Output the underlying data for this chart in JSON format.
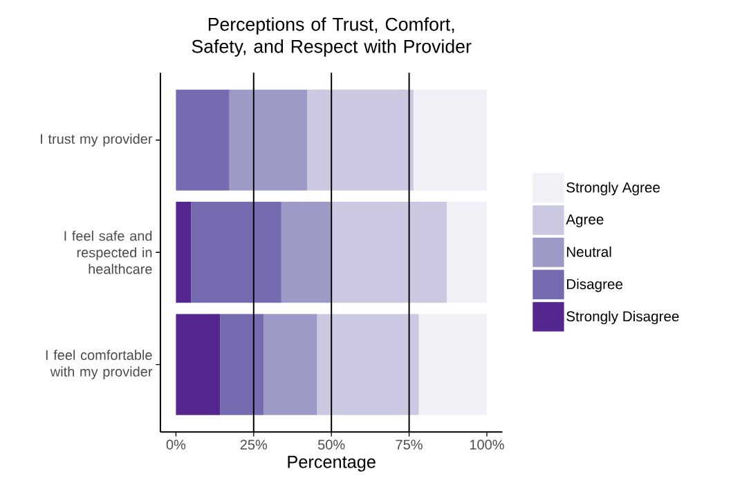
{
  "chart_data": {
    "type": "bar",
    "orientation": "horizontal",
    "stacked": true,
    "title": "Perceptions of Trust, Comfort, Safety, and Respect with Provider",
    "xlabel": "Percentage",
    "categories": [
      "I trust my provider",
      "I feel safe and respected in healthcare",
      "I feel comfortable with my provider"
    ],
    "series": [
      {
        "name": "Strongly Disagree",
        "color": "#54278f",
        "values": [
          0,
          4.9,
          14.2
        ]
      },
      {
        "name": "Disagree",
        "color": "#756bb1",
        "values": [
          17.2,
          29.0,
          14.0
        ]
      },
      {
        "name": "Neutral",
        "color": "#9e9ac8",
        "values": [
          25.0,
          15.9,
          17.2
        ]
      },
      {
        "name": "Agree",
        "color": "#cbc9e2",
        "values": [
          34.2,
          37.3,
          32.7
        ]
      },
      {
        "name": "Strongly Agree",
        "color": "#f2f0f7",
        "values": [
          23.6,
          12.9,
          21.9
        ]
      }
    ],
    "xlim": [
      -5,
      105
    ],
    "xticks": [
      {
        "value": 0,
        "label": "0%"
      },
      {
        "value": 25,
        "label": "25%"
      },
      {
        "value": 50,
        "label": "50%"
      },
      {
        "value": 75,
        "label": "75%"
      },
      {
        "value": 100,
        "label": "100%"
      }
    ],
    "ref_lines": [
      {
        "axis": "x",
        "value": 25,
        "color": "#000000"
      },
      {
        "axis": "x",
        "value": 50,
        "color": "#000000"
      },
      {
        "axis": "x",
        "value": 75,
        "color": "#000000"
      }
    ],
    "grid": false,
    "legend": "right"
  }
}
